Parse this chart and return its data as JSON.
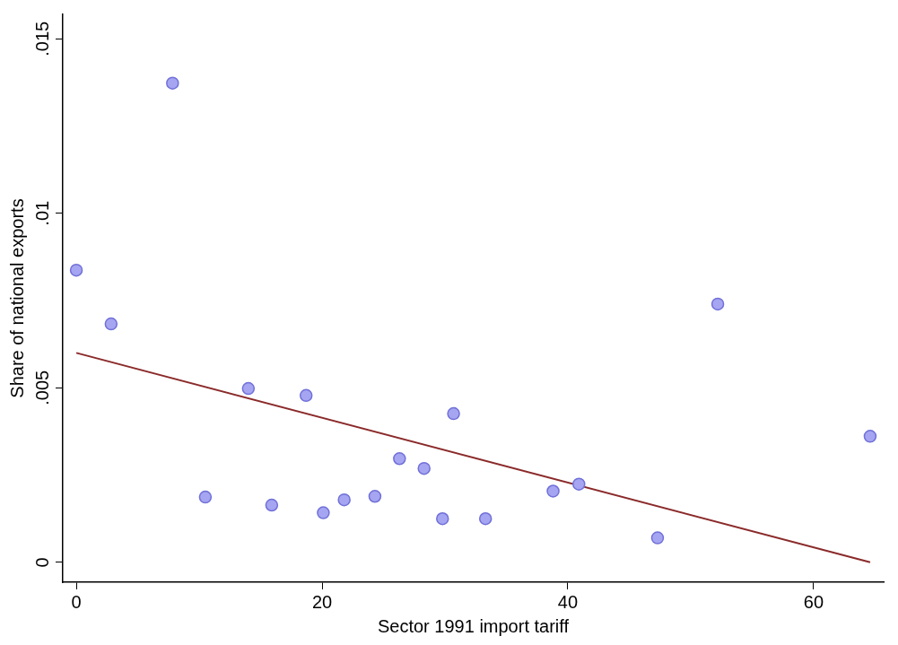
{
  "chart_data": {
    "type": "scatter",
    "xlabel": "Sector 1991 import tariff",
    "ylabel": "Share of national exports",
    "xlim": [
      -1.1,
      65.7
    ],
    "xticks": [
      0,
      20,
      40,
      60
    ],
    "ylim": [
      -0.00057,
      0.0157
    ],
    "yticks": [
      0,
      {
        "value": 0.005,
        "label": ".005"
      },
      {
        "value": 0.01,
        "label": ".01"
      },
      {
        "value": 0.015,
        "label": ".015"
      }
    ],
    "grid": false,
    "legend": false,
    "series": [
      {
        "marker": "circle",
        "color": "#a5a5f2",
        "x": [
          0,
          2.83,
          7.83,
          10.5,
          14,
          15.9,
          18.7,
          20.1,
          21.8,
          24.3,
          26.3,
          28.3,
          29.8,
          30.7,
          33.3,
          38.8,
          40.9,
          47.3,
          52.2,
          64.6
        ],
        "values": [
          0.00837,
          0.00683,
          0.01373,
          0.00187,
          0.00498,
          0.00164,
          0.00478,
          0.00142,
          0.00179,
          0.00189,
          0.00297,
          0.00269,
          0.00125,
          0.00426,
          0.00125,
          0.00204,
          0.00224,
          0.0007,
          0.0074,
          0.00361
        ]
      },
      {
        "type": "line",
        "marker": "none",
        "color": "#8b2a2a",
        "x": [
          0,
          64.6
        ],
        "values": [
          0.006,
          0
        ]
      }
    ]
  }
}
